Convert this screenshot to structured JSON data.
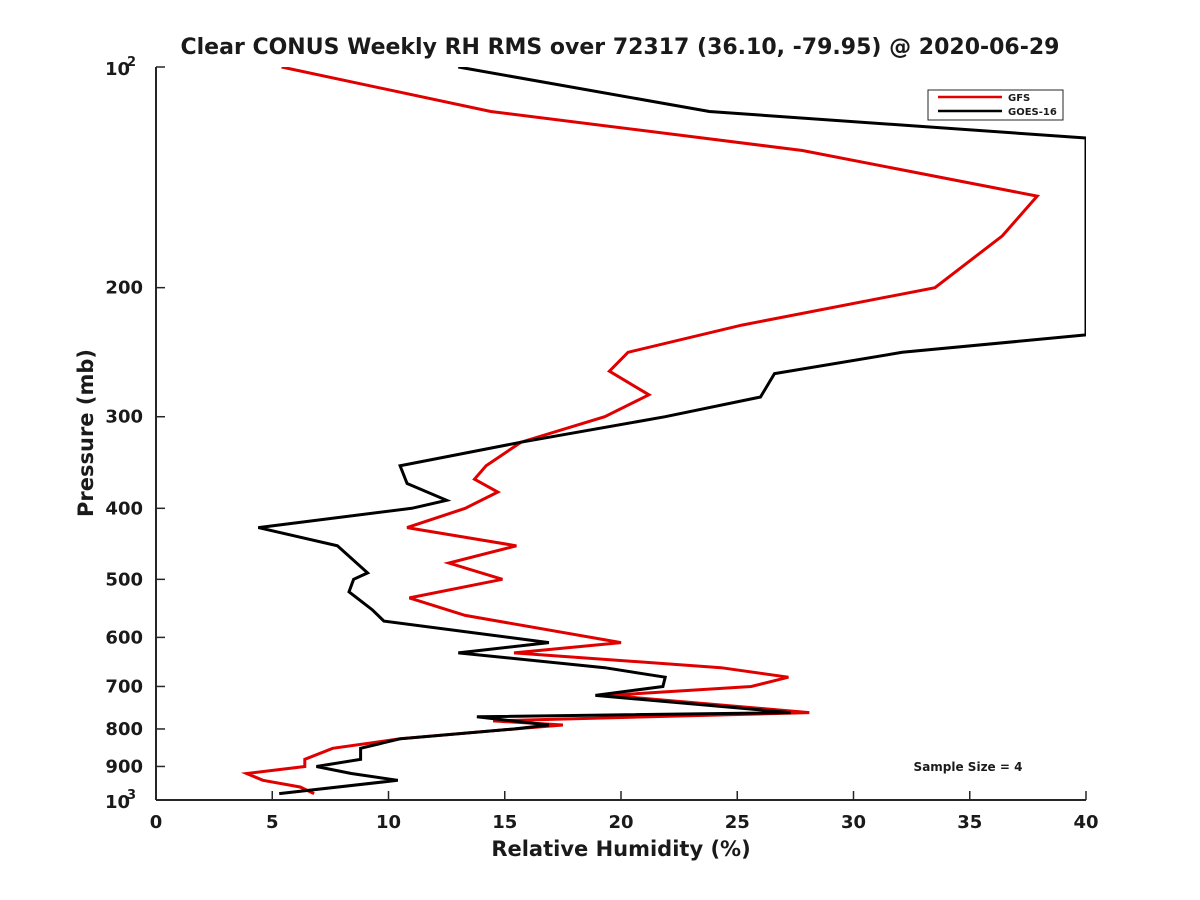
{
  "chart_data": {
    "type": "line",
    "title": "Clear CONUS Weekly RH RMS over 72317 (36.10, -79.95) @ 2020-06-29",
    "xlabel": "Relative Humidity (%)",
    "ylabel": "Pressure (mb)",
    "xlim": [
      0,
      40
    ],
    "ylim": [
      100,
      1000
    ],
    "y_scale": "log",
    "y_reversed": true,
    "grid": false,
    "legend_position": "top-right",
    "annotation": "Sample Size = 4",
    "x_ticks": [
      "0",
      "5",
      "10",
      "15",
      "20",
      "25",
      "30",
      "35",
      "40"
    ],
    "y_ticks": [
      {
        "value": 100,
        "base": "10",
        "exp": "2"
      },
      {
        "value": 200,
        "label": "200"
      },
      {
        "value": 300,
        "label": "300"
      },
      {
        "value": 400,
        "label": "400"
      },
      {
        "value": 500,
        "label": "500"
      },
      {
        "value": 600,
        "label": "600"
      },
      {
        "value": 700,
        "label": "700"
      },
      {
        "value": 800,
        "label": "800"
      },
      {
        "value": 900,
        "label": "900"
      },
      {
        "value": 1000,
        "base": "10",
        "exp": "3"
      }
    ],
    "series": [
      {
        "name": "GFS",
        "color": "#e00000",
        "points": [
          [
            5.4,
            100
          ],
          [
            14.4,
            115
          ],
          [
            27.8,
            130
          ],
          [
            37.9,
            150
          ],
          [
            36.4,
            170
          ],
          [
            33.5,
            200
          ],
          [
            25.2,
            225
          ],
          [
            20.3,
            245
          ],
          [
            19.5,
            260
          ],
          [
            21.2,
            280
          ],
          [
            19.3,
            300
          ],
          [
            15.7,
            325
          ],
          [
            14.2,
            350
          ],
          [
            13.7,
            365
          ],
          [
            14.7,
            380
          ],
          [
            13.3,
            400
          ],
          [
            10.8,
            425
          ],
          [
            15.5,
            450
          ],
          [
            12.6,
            475
          ],
          [
            14.9,
            500
          ],
          [
            10.9,
            530
          ],
          [
            13.3,
            560
          ],
          [
            20.0,
            610
          ],
          [
            15.4,
            630
          ],
          [
            24.3,
            660
          ],
          [
            27.2,
            680
          ],
          [
            25.6,
            700
          ],
          [
            19.5,
            720
          ],
          [
            28.1,
            760
          ],
          [
            14.5,
            780
          ],
          [
            17.5,
            790
          ],
          [
            15.4,
            800
          ],
          [
            10.5,
            825
          ],
          [
            7.6,
            850
          ],
          [
            6.4,
            880
          ],
          [
            6.4,
            900
          ],
          [
            3.9,
            920
          ],
          [
            4.6,
            940
          ],
          [
            6.2,
            960
          ],
          [
            6.8,
            980
          ]
        ]
      },
      {
        "name": "GOES-16",
        "color": "#000000",
        "points": [
          [
            13.0,
            100
          ],
          [
            23.8,
            115
          ],
          [
            40.0,
            125
          ],
          [
            40.0,
            232
          ],
          [
            32.1,
            245
          ],
          [
            26.6,
            262
          ],
          [
            26.0,
            282
          ],
          [
            21.9,
            300
          ],
          [
            15.7,
            325
          ],
          [
            10.5,
            350
          ],
          [
            10.8,
            370
          ],
          [
            12.5,
            390
          ],
          [
            11.0,
            400
          ],
          [
            4.4,
            425
          ],
          [
            7.8,
            450
          ],
          [
            9.1,
            490
          ],
          [
            8.5,
            500
          ],
          [
            8.3,
            520
          ],
          [
            9.3,
            550
          ],
          [
            9.8,
            570
          ],
          [
            16.9,
            610
          ],
          [
            13.0,
            630
          ],
          [
            19.3,
            660
          ],
          [
            21.9,
            680
          ],
          [
            21.8,
            700
          ],
          [
            18.9,
            720
          ],
          [
            27.3,
            760
          ],
          [
            13.8,
            770
          ],
          [
            16.9,
            790
          ],
          [
            15.4,
            800
          ],
          [
            10.5,
            825
          ],
          [
            8.8,
            850
          ],
          [
            8.8,
            880
          ],
          [
            6.9,
            900
          ],
          [
            8.4,
            920
          ],
          [
            10.4,
            940
          ],
          [
            5.3,
            980
          ]
        ]
      }
    ]
  }
}
